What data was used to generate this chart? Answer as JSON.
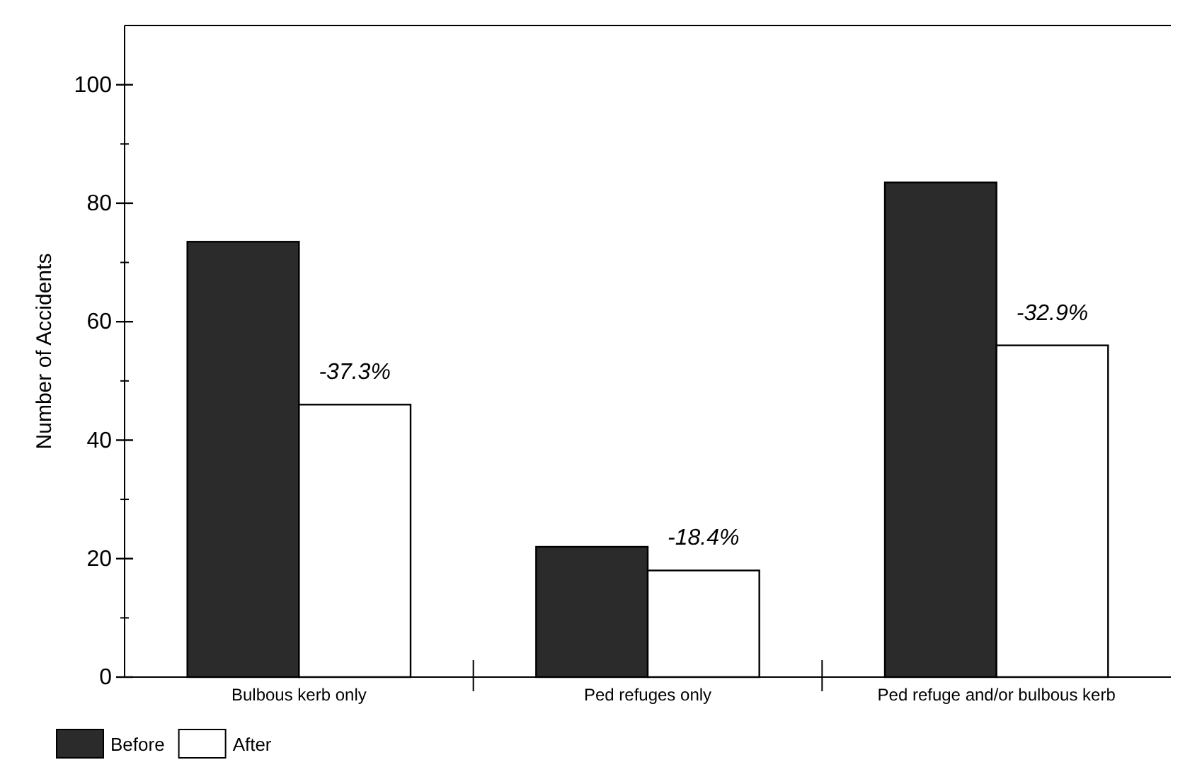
{
  "chart_data": {
    "type": "bar",
    "ylabel": "Number of Accidents",
    "categories": [
      "Bulbous kerb only",
      "Ped refuges only",
      "Ped refuge and/or bulbous kerb"
    ],
    "series": [
      {
        "name": "Before",
        "color": "#2b2b2b",
        "values": [
          73.5,
          22,
          83.5
        ]
      },
      {
        "name": "After",
        "color": "#ffffff",
        "values": [
          46,
          18,
          56
        ]
      }
    ],
    "ylim": [
      0,
      110
    ],
    "yticks": [
      0,
      {
        "value": 10,
        "label": null
      },
      20,
      {
        "value": 30,
        "label": null
      },
      40,
      {
        "value": 50,
        "label": null
      },
      60,
      {
        "value": 70,
        "label": null
      },
      80,
      {
        "value": 90,
        "label": null
      },
      100
    ],
    "annotations": [
      {
        "text": "-37.3%",
        "x": "Bulbous kerb only",
        "y": 46
      },
      {
        "text": "-18.4%",
        "x": "Ped refuges only",
        "y": 18
      },
      {
        "text": "-32.9%",
        "x": "Ped refuge and/or bulbous kerb",
        "y": 56
      }
    ],
    "grid": false,
    "legend": "bottom left"
  }
}
